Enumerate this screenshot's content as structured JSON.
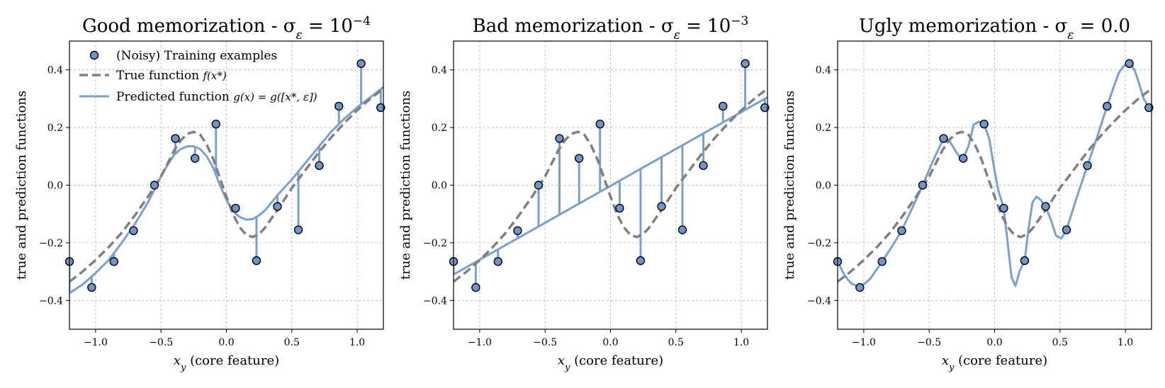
{
  "colors": {
    "true_function": "#808080",
    "prediction": "#7b9fd3",
    "marker_face": "#6f95cc",
    "marker_edge": "#000000",
    "grid": "#b0b0b0"
  },
  "chart_data": [
    {
      "type": "line",
      "title": "Good memorization - σ",
      "title_sub": "ε",
      "title_eq": " = 10",
      "title_sup": "−4",
      "xlabel": "x",
      "xlabel_sub": "y",
      "xlabel_rest": " (core feature)",
      "ylabel": "true and prediction functions",
      "xlim": [
        -1.2,
        1.2
      ],
      "ylim": [
        -0.5,
        0.5
      ],
      "xticks": [
        -1.0,
        -0.5,
        0.0,
        0.5,
        1.0
      ],
      "xtick_labels": [
        "−1.0",
        "−0.5",
        "0.0",
        "0.5",
        "1.0"
      ],
      "yticks": [
        -0.4,
        -0.2,
        0.0,
        0.2,
        0.4
      ],
      "ytick_labels": [
        "−0.4",
        "−0.2",
        "0.0",
        "0.2",
        "0.4"
      ],
      "grid": true,
      "legend": {
        "placement": "upper-left",
        "entries": [
          {
            "kind": "marker",
            "label": "(Noisy) Training examples"
          },
          {
            "kind": "dashed",
            "label": "True function ",
            "math": "f(x*)"
          },
          {
            "kind": "solid",
            "label": "Predicted function ",
            "math": "g(x) = g([x*, ε])"
          }
        ]
      },
      "series": [
        {
          "name": "(Noisy) Training examples",
          "type": "scatter",
          "x": [
            -1.2,
            -1.03,
            -0.86,
            -0.71,
            -0.55,
            -0.39,
            -0.24,
            -0.08,
            0.07,
            0.23,
            0.39,
            0.55,
            0.71,
            0.86,
            1.03,
            1.18
          ],
          "y": [
            -0.265,
            -0.355,
            -0.265,
            -0.158,
            0.0,
            0.162,
            0.093,
            0.212,
            -0.08,
            -0.262,
            -0.074,
            -0.155,
            0.068,
            0.274,
            0.422,
            0.269
          ]
        },
        {
          "name": "True function f(x*)",
          "type": "line",
          "x": [
            -1.2,
            -1.1,
            -1.0,
            -0.9,
            -0.8,
            -0.7,
            -0.6,
            -0.5,
            -0.4,
            -0.35,
            -0.3,
            -0.25,
            -0.2,
            -0.15,
            -0.1,
            -0.05,
            0.0,
            0.05,
            0.1,
            0.15,
            0.2,
            0.25,
            0.3,
            0.35,
            0.4,
            0.5,
            0.6,
            0.7,
            0.8,
            0.9,
            1.0,
            1.1,
            1.2
          ],
          "y": [
            -0.335,
            -0.3,
            -0.26,
            -0.215,
            -0.165,
            -0.105,
            -0.04,
            0.03,
            0.12,
            0.155,
            0.178,
            0.185,
            0.175,
            0.14,
            0.09,
            0.025,
            -0.04,
            -0.1,
            -0.145,
            -0.172,
            -0.18,
            -0.17,
            -0.145,
            -0.112,
            -0.08,
            -0.01,
            0.05,
            0.11,
            0.165,
            0.215,
            0.26,
            0.3,
            0.335
          ]
        },
        {
          "name": "Predicted function g(x) = g([x*, ε])",
          "type": "line",
          "x": [
            -1.2,
            -1.1,
            -1.0,
            -0.9,
            -0.8,
            -0.7,
            -0.6,
            -0.5,
            -0.45,
            -0.4,
            -0.35,
            -0.3,
            -0.25,
            -0.2,
            -0.15,
            -0.1,
            -0.05,
            0.0,
            0.05,
            0.1,
            0.15,
            0.2,
            0.25,
            0.3,
            0.4,
            0.5,
            0.6,
            0.7,
            0.8,
            0.9,
            1.0,
            1.1,
            1.2
          ],
          "y": [
            -0.375,
            -0.345,
            -0.305,
            -0.26,
            -0.2,
            -0.135,
            -0.06,
            0.03,
            0.07,
            0.105,
            0.125,
            0.135,
            0.135,
            0.125,
            0.1,
            0.06,
            0.0,
            -0.05,
            -0.09,
            -0.11,
            -0.12,
            -0.118,
            -0.105,
            -0.085,
            -0.03,
            0.02,
            0.075,
            0.13,
            0.185,
            0.23,
            0.27,
            0.305,
            0.34
          ]
        }
      ]
    },
    {
      "type": "line",
      "title": "Bad memorization - σ",
      "title_sub": "ε",
      "title_eq": " = 10",
      "title_sup": "−3",
      "xlabel": "x",
      "xlabel_sub": "y",
      "xlabel_rest": " (core feature)",
      "ylabel": "true and prediction functions",
      "xlim": [
        -1.2,
        1.2
      ],
      "ylim": [
        -0.5,
        0.5
      ],
      "xticks": [
        -1.0,
        -0.5,
        0.0,
        0.5,
        1.0
      ],
      "xtick_labels": [
        "−1.0",
        "−0.5",
        "0.0",
        "0.5",
        "1.0"
      ],
      "yticks": [
        -0.4,
        -0.2,
        0.0,
        0.2,
        0.4
      ],
      "ytick_labels": [
        "−0.4",
        "−0.2",
        "0.0",
        "0.2",
        "0.4"
      ],
      "grid": true,
      "series": [
        {
          "name": "(Noisy) Training examples",
          "type": "scatter",
          "x": [
            -1.2,
            -1.03,
            -0.86,
            -0.71,
            -0.55,
            -0.39,
            -0.24,
            -0.08,
            0.07,
            0.23,
            0.39,
            0.55,
            0.71,
            0.86,
            1.03,
            1.18
          ],
          "y": [
            -0.265,
            -0.355,
            -0.265,
            -0.158,
            0.0,
            0.162,
            0.093,
            0.212,
            -0.08,
            -0.262,
            -0.074,
            -0.155,
            0.068,
            0.274,
            0.422,
            0.269
          ]
        },
        {
          "name": "True function f(x*)",
          "type": "line",
          "x": [
            -1.2,
            -1.1,
            -1.0,
            -0.9,
            -0.8,
            -0.7,
            -0.6,
            -0.5,
            -0.4,
            -0.35,
            -0.3,
            -0.25,
            -0.2,
            -0.15,
            -0.1,
            -0.05,
            0.0,
            0.05,
            0.1,
            0.15,
            0.2,
            0.25,
            0.3,
            0.35,
            0.4,
            0.5,
            0.6,
            0.7,
            0.8,
            0.9,
            1.0,
            1.1,
            1.2
          ],
          "y": [
            -0.335,
            -0.3,
            -0.26,
            -0.215,
            -0.165,
            -0.105,
            -0.04,
            0.03,
            0.12,
            0.155,
            0.178,
            0.185,
            0.175,
            0.14,
            0.09,
            0.025,
            -0.04,
            -0.1,
            -0.145,
            -0.172,
            -0.18,
            -0.17,
            -0.145,
            -0.112,
            -0.08,
            -0.01,
            0.05,
            0.11,
            0.165,
            0.215,
            0.26,
            0.3,
            0.335
          ]
        },
        {
          "name": "Predicted function g(x) = g([x*, ε])",
          "type": "line",
          "x": [
            -1.2,
            1.2
          ],
          "y": [
            -0.31,
            0.305
          ]
        }
      ]
    },
    {
      "type": "line",
      "title": "Ugly memorization - σ",
      "title_sub": "ε",
      "title_eq": " = 0.0",
      "title_sup": "",
      "xlabel": "x",
      "xlabel_sub": "y",
      "xlabel_rest": " (core feature)",
      "ylabel": "true and prediction functions",
      "xlim": [
        -1.2,
        1.2
      ],
      "ylim": [
        -0.5,
        0.5
      ],
      "xticks": [
        -1.0,
        -0.5,
        0.0,
        0.5,
        1.0
      ],
      "xtick_labels": [
        "−1.0",
        "−0.5",
        "0.0",
        "0.5",
        "1.0"
      ],
      "yticks": [
        -0.4,
        -0.2,
        0.0,
        0.2,
        0.4
      ],
      "ytick_labels": [
        "−0.4",
        "−0.2",
        "0.0",
        "0.2",
        "0.4"
      ],
      "grid": true,
      "series": [
        {
          "name": "(Noisy) Training examples",
          "type": "scatter",
          "x": [
            -1.2,
            -1.03,
            -0.86,
            -0.71,
            -0.55,
            -0.39,
            -0.24,
            -0.08,
            0.07,
            0.23,
            0.39,
            0.55,
            0.71,
            0.86,
            1.03,
            1.18
          ],
          "y": [
            -0.265,
            -0.355,
            -0.265,
            -0.158,
            0.0,
            0.162,
            0.093,
            0.212,
            -0.08,
            -0.262,
            -0.074,
            -0.155,
            0.068,
            0.274,
            0.422,
            0.269
          ]
        },
        {
          "name": "True function f(x*)",
          "type": "line",
          "x": [
            -1.2,
            -1.1,
            -1.0,
            -0.9,
            -0.8,
            -0.7,
            -0.6,
            -0.5,
            -0.4,
            -0.35,
            -0.3,
            -0.25,
            -0.2,
            -0.15,
            -0.1,
            -0.05,
            0.0,
            0.05,
            0.1,
            0.15,
            0.2,
            0.25,
            0.3,
            0.35,
            0.4,
            0.5,
            0.6,
            0.7,
            0.8,
            0.9,
            1.0,
            1.1,
            1.2
          ],
          "y": [
            -0.335,
            -0.3,
            -0.26,
            -0.215,
            -0.165,
            -0.105,
            -0.04,
            0.03,
            0.12,
            0.155,
            0.178,
            0.185,
            0.175,
            0.14,
            0.09,
            0.025,
            -0.04,
            -0.1,
            -0.145,
            -0.172,
            -0.18,
            -0.17,
            -0.145,
            -0.112,
            -0.08,
            -0.01,
            0.05,
            0.11,
            0.165,
            0.215,
            0.26,
            0.3,
            0.335
          ]
        },
        {
          "name": "Predicted function g(x) = g([x*, ε])",
          "type": "line",
          "x": [
            -1.2,
            -1.15,
            -1.1,
            -1.03,
            -0.95,
            -0.86,
            -0.78,
            -0.71,
            -0.63,
            -0.55,
            -0.47,
            -0.39,
            -0.34,
            -0.3,
            -0.27,
            -0.24,
            -0.2,
            -0.16,
            -0.12,
            -0.08,
            -0.04,
            0.0,
            0.03,
            0.07,
            0.1,
            0.13,
            0.16,
            0.19,
            0.23,
            0.26,
            0.29,
            0.32,
            0.35,
            0.39,
            0.43,
            0.47,
            0.51,
            0.55,
            0.63,
            0.71,
            0.79,
            0.86,
            0.91,
            0.95,
            0.99,
            1.03,
            1.07,
            1.1,
            1.14,
            1.18,
            1.2
          ],
          "y": [
            -0.265,
            -0.31,
            -0.34,
            -0.355,
            -0.325,
            -0.265,
            -0.21,
            -0.158,
            -0.08,
            0.0,
            0.085,
            0.162,
            0.15,
            0.12,
            0.1,
            0.093,
            0.135,
            0.21,
            0.22,
            0.212,
            0.16,
            0.05,
            -0.02,
            -0.08,
            -0.2,
            -0.32,
            -0.35,
            -0.3,
            -0.262,
            -0.15,
            -0.06,
            -0.04,
            -0.05,
            -0.074,
            -0.12,
            -0.175,
            -0.185,
            -0.155,
            -0.04,
            0.068,
            0.175,
            0.274,
            0.34,
            0.39,
            0.415,
            0.422,
            0.4,
            0.36,
            0.3,
            0.269,
            0.265
          ]
        }
      ]
    }
  ]
}
